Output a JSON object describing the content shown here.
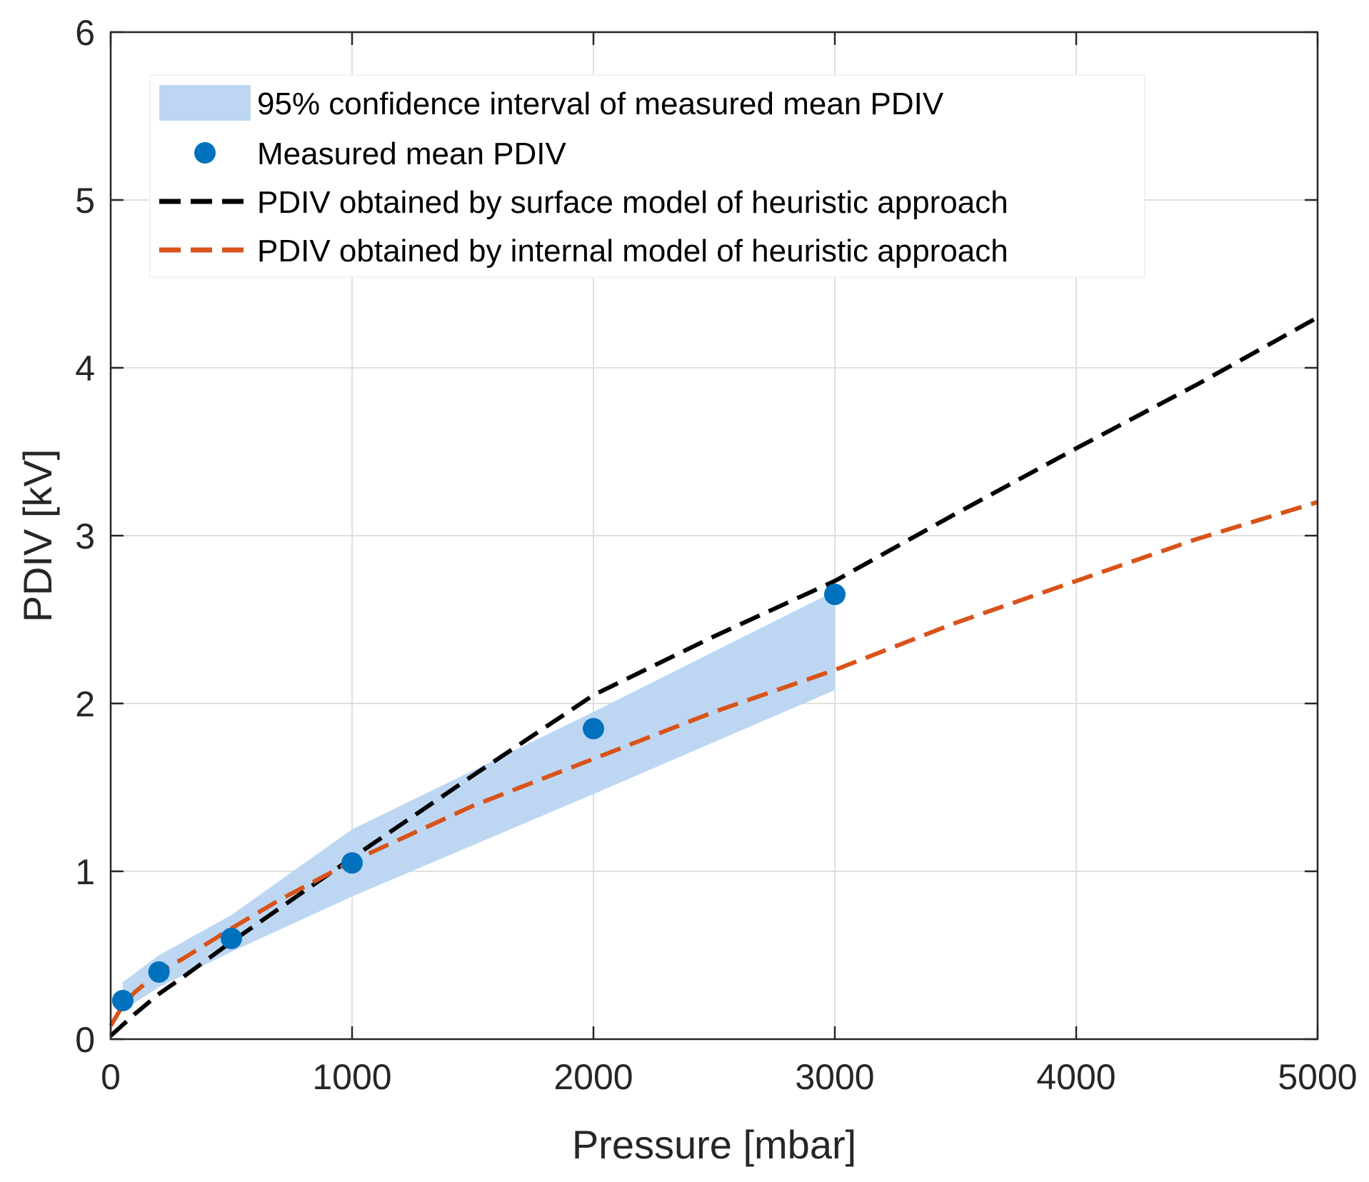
{
  "chart_data": {
    "type": "line",
    "title": "",
    "xlabel": "Pressure [mbar]",
    "ylabel": "PDIV [kV]",
    "xlim": [
      0,
      5000
    ],
    "ylim": [
      0,
      6
    ],
    "xticks": [
      0,
      1000,
      2000,
      3000,
      4000,
      5000
    ],
    "yticks": [
      0,
      1,
      2,
      3,
      4,
      5,
      6
    ],
    "xtick_labels": [
      "0",
      "1000",
      "2000",
      "3000",
      "4000",
      "5000"
    ],
    "ytick_labels": [
      "0",
      "1",
      "2",
      "3",
      "4",
      "5",
      "6"
    ],
    "grid": true,
    "legend_position": "top-left",
    "confidence_band": {
      "name": "95% confidence interval of measured mean PDIV",
      "color": "#BDD7F3",
      "x": [
        50,
        200,
        500,
        1000,
        2000,
        3000
      ],
      "lower": [
        0.17,
        0.31,
        0.52,
        0.85,
        1.46,
        2.08
      ],
      "upper": [
        0.34,
        0.5,
        0.74,
        1.25,
        1.95,
        2.67
      ]
    },
    "measured": {
      "name": "Measured mean PDIV",
      "color": "#0072BD",
      "x": [
        50,
        200,
        500,
        1000,
        2000,
        3000
      ],
      "y": [
        0.23,
        0.4,
        0.6,
        1.05,
        1.85,
        2.65
      ]
    },
    "series": [
      {
        "name": "PDIV obtained by surface model of heuristic approach",
        "color": "#000000",
        "x": [
          0,
          100,
          200,
          300,
          500,
          700,
          1000,
          1500,
          2000,
          2500,
          3000,
          3500,
          4000,
          4500,
          5000
        ],
        "y": [
          0.02,
          0.15,
          0.27,
          0.37,
          0.58,
          0.78,
          1.08,
          1.57,
          2.05,
          2.4,
          2.73,
          3.13,
          3.52,
          3.9,
          4.3
        ]
      },
      {
        "name": "PDIV obtained by internal model of heuristic approach",
        "color": "#D95319",
        "x": [
          0,
          50,
          100,
          200,
          300,
          500,
          700,
          1000,
          1500,
          2000,
          2500,
          3000,
          3500,
          4000,
          4500,
          5000
        ],
        "y": [
          0.08,
          0.2,
          0.28,
          0.4,
          0.48,
          0.66,
          0.83,
          1.06,
          1.39,
          1.67,
          1.95,
          2.2,
          2.48,
          2.73,
          2.98,
          3.2
        ]
      }
    ]
  }
}
